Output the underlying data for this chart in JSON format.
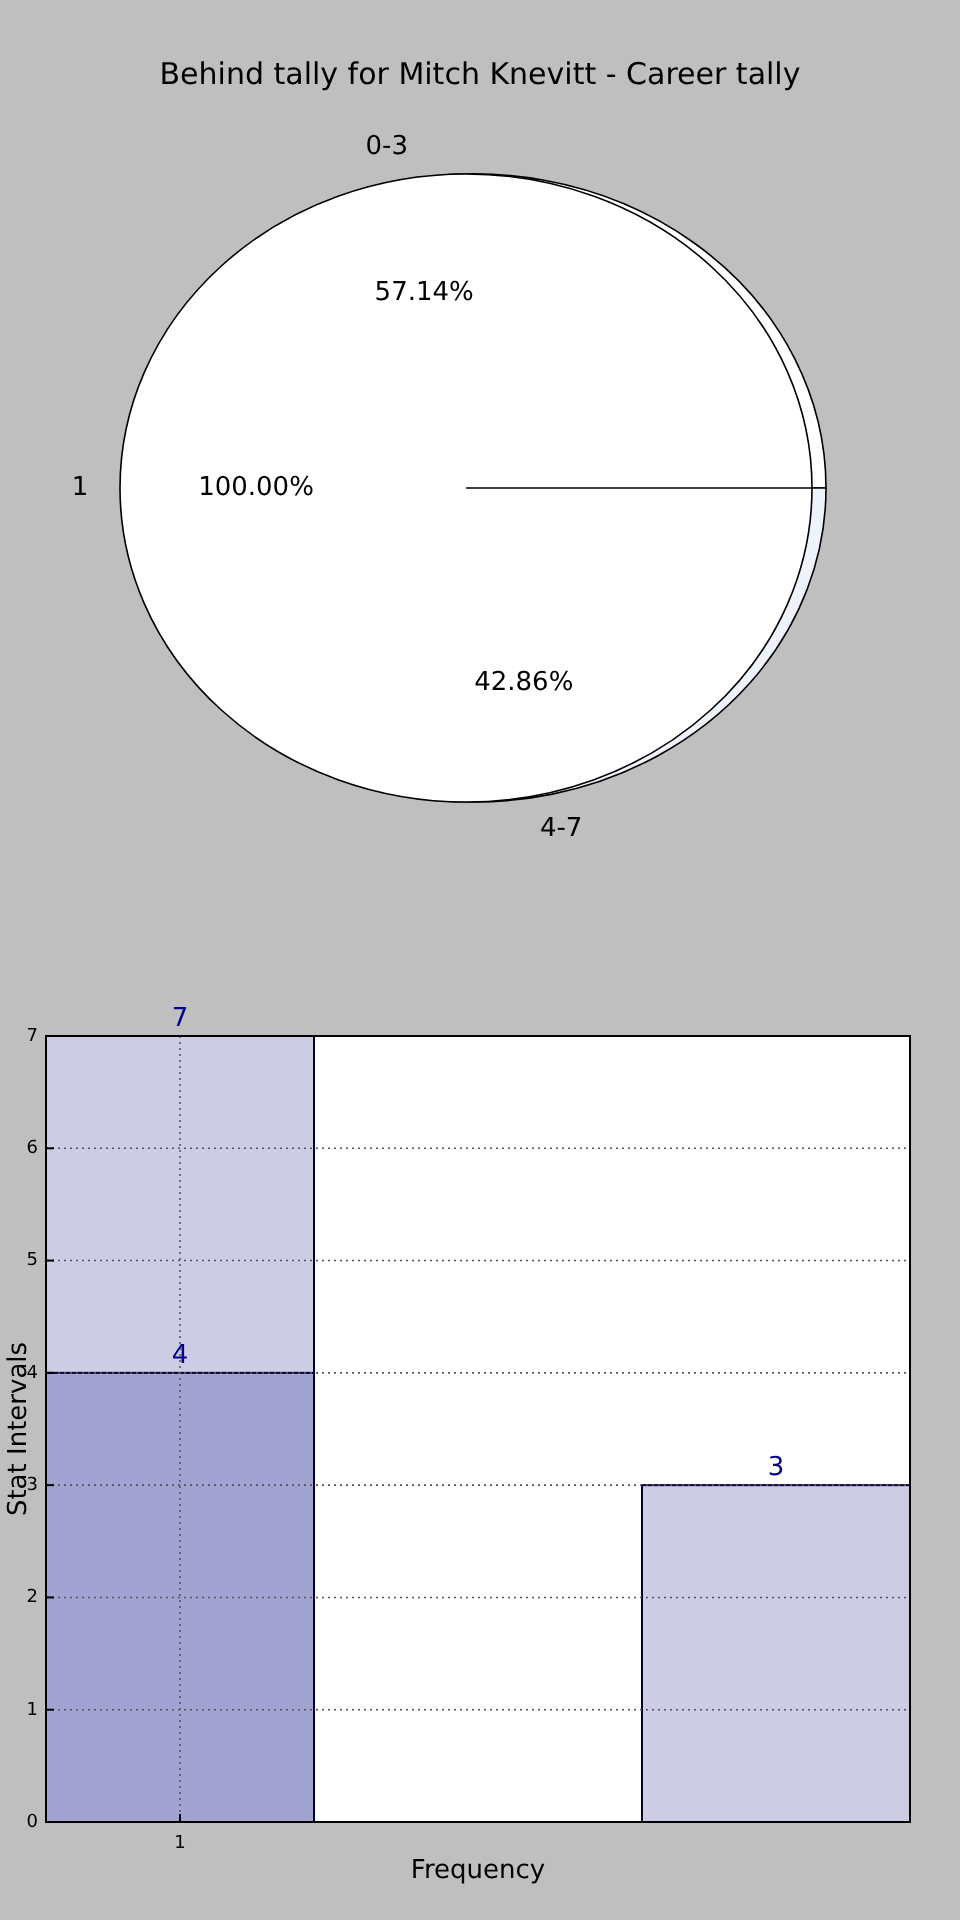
{
  "chart_data": [
    {
      "type": "donut",
      "title": "Behind tally for Mitch Knevitt - Career tally",
      "categories": [
        "0-3",
        "4-7"
      ],
      "values": [
        57.14,
        42.86
      ],
      "colors": [
        "#ffffff",
        "#eef2fb"
      ],
      "value_labels": [
        "57.14%",
        "42.86%"
      ]
    },
    {
      "type": "pie",
      "categories": [
        "1"
      ],
      "values": [
        100
      ],
      "colors": [
        "#ffffff"
      ],
      "value_labels": [
        "100.00%"
      ]
    },
    {
      "type": "bar",
      "categories": [
        "1",
        null,
        null
      ],
      "series": [
        {
          "color": "#cccce4",
          "values": [
            7,
            null,
            3
          ]
        },
        {
          "color": "#a3a3d1",
          "values": [
            4,
            null,
            null
          ]
        }
      ],
      "ylim": [
        0,
        7
      ],
      "yticks": [
        0,
        1,
        2,
        3,
        4,
        5,
        6,
        7
      ],
      "grid": true,
      "data_labels": true,
      "xlabel": "Frequency",
      "ylabel": "Stat Intervals"
    }
  ]
}
